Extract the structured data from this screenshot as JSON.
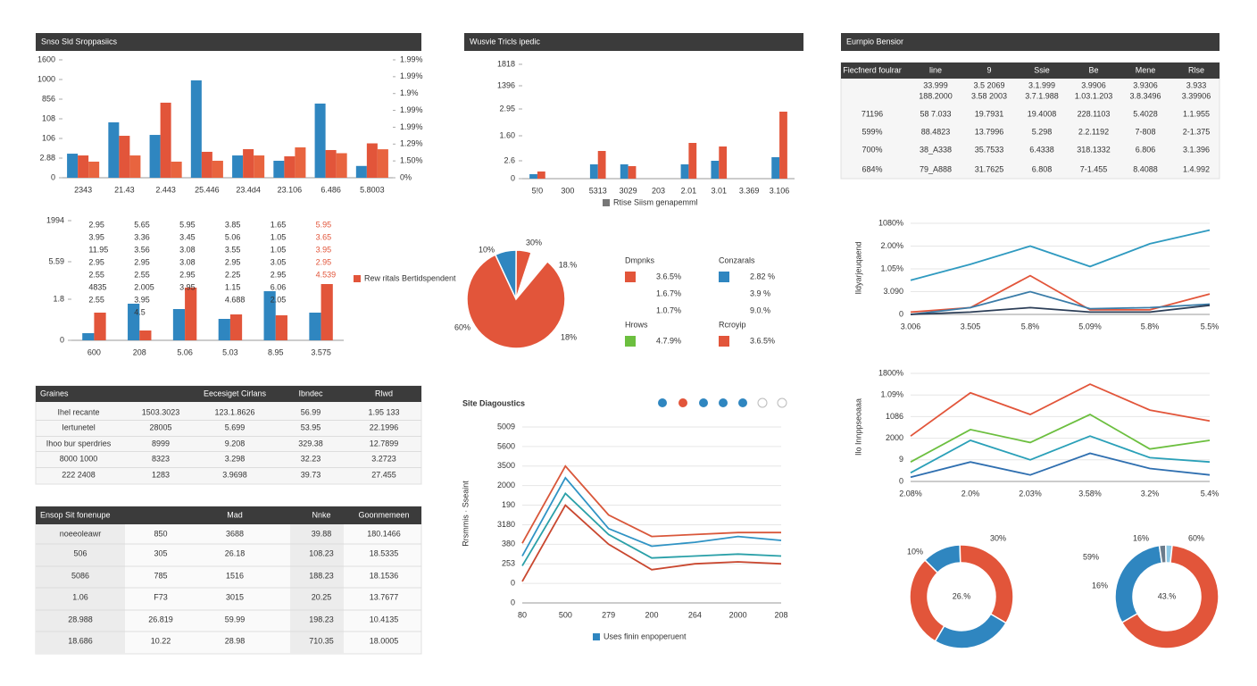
{
  "chart_data": [
    {
      "type": "bar",
      "title": "Snso Sld Sroppasiics",
      "categories": [
        "2343",
        "21.43",
        "2.443",
        "25.446",
        "23.4d4",
        "23.106",
        "6.486",
        "5.8003"
      ],
      "series": [
        {
          "color": "#2f86c0",
          "values": [
            245,
            564,
            436,
            991,
            227,
            173,
            755,
            120
          ]
        },
        {
          "color": "#e2553a",
          "values": [
            227,
            427,
            764,
            264,
            291,
            218,
            282,
            350
          ]
        },
        {
          "color": "#e8643f",
          "values": [
            164,
            227,
            164,
            173,
            227,
            309,
            250,
            290
          ]
        }
      ],
      "ylim": [
        0,
        1200
      ],
      "yticks": [
        0,
        {
          "value": 200,
          "label": "2.88"
        },
        {
          "value": 400,
          "label": "106"
        },
        {
          "value": 600,
          "label": "108"
        },
        {
          "value": 800,
          "label": "856"
        },
        {
          "value": 1000,
          "label": "1000"
        },
        {
          "value": 1200,
          "label": "1600"
        }
      ],
      "y2lim": [
        0,
        7
      ],
      "y2ticks": [
        {
          "value": 0,
          "label": "0%"
        },
        {
          "value": 1,
          "label": "1.50%"
        },
        {
          "value": 2,
          "label": "1.29%"
        },
        {
          "value": 3,
          "label": "1.99%"
        },
        {
          "value": 4,
          "label": "1.99%"
        },
        {
          "value": 5,
          "label": "1.9%"
        },
        {
          "value": 6,
          "label": "1.99%"
        },
        {
          "value": 7,
          "label": "1.99%"
        }
      ],
      "grid": false
    },
    {
      "type": "bar",
      "title": "Wusvie Tricls ipedic",
      "categories": [
        "5!0",
        "300",
        "5313",
        "3029",
        "203",
        "2.01",
        "3.01",
        "3.369",
        "3.106"
      ],
      "series": [
        {
          "color": "#2f86c0",
          "values": [
            5,
            null,
            16,
            16,
            null,
            16,
            20,
            null,
            24
          ]
        },
        {
          "color": "#e2553a",
          "values": [
            8,
            null,
            31,
            14,
            null,
            40,
            36,
            null,
            75
          ]
        }
      ],
      "ylim": [
        0,
        128
      ],
      "yticks": [
        0,
        {
          "value": 20,
          "label": "2.6"
        },
        {
          "value": 48,
          "label": "1.60"
        },
        {
          "value": 78,
          "label": "2.95"
        },
        {
          "value": 104,
          "label": "1396"
        },
        {
          "value": 128,
          "label": "1818"
        }
      ],
      "legend": "Rtise Siism genapemml",
      "legend_color": "#777777",
      "grid": false
    },
    {
      "type": "bar",
      "categories": [
        "600",
        "208",
        "5.06",
        "5.03",
        "8.95",
        "3.575"
      ],
      "series": [
        {
          "color": "#2f86c0",
          "values": [
            8,
            41,
            35,
            24,
            55,
            31
          ]
        },
        {
          "color": "#e2553a",
          "values": [
            31,
            11,
            59,
            29,
            28,
            63
          ]
        }
      ],
      "ylim": [
        0,
        134
      ],
      "yticks": [
        0,
        {
          "value": 46,
          "label": "1.8"
        },
        {
          "value": 88,
          "label": "5.59"
        },
        {
          "value": 134,
          "label": "1994"
        }
      ],
      "legend": "Rew ritals Bertidspendent",
      "legend_color": "#e2553a",
      "annotations": [
        [
          "2.95",
          "3.95",
          "11.95",
          "2.95",
          "2.55",
          "4835",
          "2.55"
        ],
        [
          "5.65",
          "3.36",
          "3.56",
          "2.95",
          "2.55",
          "2.005",
          "3.95",
          "4.5"
        ],
        [
          "5.95",
          "3.45",
          "3.08",
          "3.08",
          "2.95",
          "3.95"
        ],
        [
          "3.85",
          "5.06",
          "3.55",
          "2.95",
          "2.25",
          "1.15",
          "4.688"
        ],
        [
          "1.65",
          "1.05",
          "1.05",
          "3.05",
          "2.95",
          "6.06",
          "2.05"
        ],
        [
          "5.95",
          "3.65",
          "3.95",
          "2.95",
          "4.539"
        ]
      ],
      "annotation_colors": [
        "#333333",
        "#333333",
        "#333333",
        "#333333",
        "#333333",
        "#e2553a"
      ],
      "grid": false
    },
    {
      "type": "pie",
      "values": [
        7,
        5,
        6,
        82
      ],
      "colors": [
        "#2f86c0",
        "#e2553a",
        "#ffffff",
        "#e2553a"
      ],
      "annotations": [
        "10%",
        "30%",
        "18.%",
        "60%",
        "18%"
      ],
      "legend_groups": [
        {
          "title": "Dmpnks",
          "color": "#e2553a",
          "items": [
            "3.6.5%",
            "1.6.7%",
            "1.0.7%"
          ]
        },
        {
          "title": "Conzarals",
          "color": "#2f86c0",
          "items": [
            "2.82 %",
            "3.9 %",
            "9.0.%"
          ]
        },
        {
          "title": "Hrows",
          "color": "#6cbf3f",
          "items": [
            "4.7.9%"
          ]
        },
        {
          "title": "Rcroyip",
          "color": "#e2553a",
          "items": [
            "3.6.5%"
          ]
        }
      ]
    },
    {
      "type": "line",
      "title": "Site Diagoustics",
      "ylabel": "Rrsmmis · Sseaint",
      "categories": [
        "80",
        "500",
        "279",
        "200",
        "264",
        "2000",
        "208"
      ],
      "series": [
        {
          "color": "#d9573a",
          "values": [
            3.05,
            7.0,
            4.5,
            3.4,
            3.5,
            3.6,
            3.6
          ]
        },
        {
          "color": "#2f93c4",
          "values": [
            2.4,
            6.4,
            3.8,
            2.9,
            3.1,
            3.4,
            3.2
          ]
        },
        {
          "color": "#2aa0a8",
          "values": [
            1.9,
            5.6,
            3.5,
            2.3,
            2.4,
            2.5,
            2.4
          ]
        },
        {
          "color": "#c9472f",
          "values": [
            1.1,
            5.0,
            3.0,
            1.7,
            2.0,
            2.1,
            2.0
          ]
        }
      ],
      "ylim": [
        0,
        9
      ],
      "yticks": [
        0,
        {
          "value": 1,
          "label": "0"
        },
        {
          "value": 2,
          "label": "253"
        },
        {
          "value": 3,
          "label": "380"
        },
        {
          "value": 4,
          "label": "3180"
        },
        {
          "value": 5,
          "label": "190"
        },
        {
          "value": 6,
          "label": "2000"
        },
        {
          "value": 7,
          "label": "3500"
        },
        {
          "value": 8,
          "label": "5600"
        },
        {
          "value": 9,
          "label": "5009"
        }
      ],
      "legend": "Uses finin enpoperuent",
      "legend_color": "#2f86c0",
      "grid": true
    },
    {
      "type": "line",
      "ylabel": "Ildyarjeuqaend",
      "categories": [
        "3.006",
        "3.505",
        "5.8%",
        "5.09%",
        "5.8%",
        "5.5%"
      ],
      "series": [
        {
          "color": "#2f9ac0",
          "values": [
            1.5,
            2.2,
            3.0,
            2.1,
            3.1,
            3.7
          ]
        },
        {
          "color": "#e2553a",
          "values": [
            0.1,
            0.3,
            1.7,
            0.2,
            0.2,
            0.9
          ]
        },
        {
          "color": "#3a7ca8",
          "values": [
            0,
            0.3,
            1.0,
            0.25,
            0.3,
            0.45
          ]
        },
        {
          "color": "#2c3e57",
          "values": [
            0,
            0.1,
            0.3,
            0.1,
            0.1,
            0.4
          ]
        }
      ],
      "ylim": [
        0,
        4
      ],
      "yticks": [
        0,
        {
          "value": 1,
          "label": "3.090"
        },
        {
          "value": 2,
          "label": "1.05%"
        },
        {
          "value": 3,
          "label": "2.00%"
        },
        {
          "value": 4,
          "label": "1080%"
        }
      ],
      "grid": true
    },
    {
      "type": "line",
      "ylabel": "Ilo Innppseoaaa",
      "categories": [
        "2.08%",
        "2.0%",
        "2.03%",
        "3.58%",
        "3.2%",
        "5.4%"
      ],
      "series": [
        {
          "color": "#e2553a",
          "values": [
            2.1,
            4.1,
            3.1,
            4.5,
            3.3,
            2.8
          ]
        },
        {
          "color": "#6cbf3f",
          "values": [
            0.9,
            2.4,
            1.8,
            3.1,
            1.5,
            1.9
          ]
        },
        {
          "color": "#2aa0b8",
          "values": [
            0.4,
            1.9,
            1.0,
            2.1,
            1.1,
            0.9
          ]
        },
        {
          "color": "#2f6fb0",
          "values": [
            0.2,
            0.9,
            0.3,
            1.3,
            0.6,
            0.3
          ]
        }
      ],
      "ylim": [
        0,
        5
      ],
      "yticks": [
        0,
        {
          "value": 1,
          "label": "9"
        },
        {
          "value": 2,
          "label": "2000"
        },
        {
          "value": 3,
          "label": "1086"
        },
        {
          "value": 4,
          "label": "1.09%"
        },
        {
          "value": 5,
          "label": "1800%"
        }
      ],
      "grid": true
    },
    {
      "type": "pie",
      "donut": true,
      "values": [
        12,
        34,
        25,
        29
      ],
      "colors": [
        "#2f86c0",
        "#e2553a",
        "#2f86c0",
        "#e2553a"
      ],
      "center_label": "26.%",
      "annotations": [
        "10%",
        "30%"
      ]
    },
    {
      "type": "pie",
      "donut": true,
      "values": [
        31,
        2,
        2,
        65
      ],
      "colors": [
        "#2f86c0",
        "#6b7c8c",
        "#8ec9e6",
        "#e2553a"
      ],
      "center_label": "43.%",
      "annotations": [
        "16%",
        "60%",
        "59%",
        "16%"
      ]
    }
  ],
  "tables": [
    {
      "title": "Eurnpio Bensior",
      "columns": [
        "Fiecfnerd foulrar",
        "line",
        "9",
        "Ssie",
        "Be",
        "Mene",
        "Rlse"
      ],
      "rows": [
        [
          null,
          "33.999",
          "3.5 2069",
          "3.1.999",
          "3.9906",
          "3.9306",
          "3.933"
        ],
        [
          null,
          "188.2000",
          "3.58 2003",
          "3.7.1.988",
          "1.03.1.203",
          "3.8.3496",
          "3.39906"
        ],
        [
          "71196",
          "58 7.033",
          "19.7931",
          "19.4008",
          "228.1103",
          "5.4028",
          "1.1.955"
        ],
        [
          "599%",
          "88.4823",
          "13.7996",
          "5.298",
          "2.2.1192",
          "7-808",
          "2-1.375"
        ],
        [
          "700%",
          "38_A338",
          "35.7533",
          "6.4338",
          "318.1332",
          "6.806",
          "3.1.396"
        ],
        [
          "684%",
          "79_A888",
          "31.7625",
          "6.808",
          "7-1.455",
          "8.4088",
          "1.4.992"
        ]
      ]
    },
    {
      "title": "Graines",
      "columns": [
        "Eecesiget Cirlans",
        "Ibndec",
        "Rlwd"
      ],
      "rows": [
        [
          "Ihel recante",
          "1503.3023",
          "123.1.8626",
          "56.99",
          "1.95 133"
        ],
        [
          "Iertunetel",
          "28005",
          "5.699",
          "53.95",
          "22.1996"
        ],
        [
          "Ihoo bur sperdries",
          "8999",
          "9.208",
          "329.38",
          "12.7899"
        ],
        [
          "8000 1000",
          "8323",
          "3.298",
          "32.23",
          "3.2723"
        ],
        [
          "222 2408",
          "1283",
          "3.9698",
          "39.73",
          "27.455"
        ]
      ]
    },
    {
      "title": "Ensop Sit fonenupe",
      "columns": [
        "Mad",
        "Nnke",
        "Goonmemeen"
      ],
      "rows": [
        [
          "noeeoleawr",
          "850",
          "3688",
          "39.88",
          "180.1466"
        ],
        [
          "506",
          "305",
          "26.18",
          "108.23",
          "18.5335"
        ],
        [
          "5086",
          "785",
          "1516",
          "188.23",
          "18.1536"
        ],
        [
          "1.06",
          "F73",
          "3015",
          "20.25",
          "13.7677"
        ],
        [
          "28.988",
          "26.819",
          "59.99",
          "198.23",
          "10.4135"
        ],
        [
          "18.686",
          "10.22",
          "28.98",
          "710.35",
          "18.0005"
        ]
      ]
    }
  ]
}
